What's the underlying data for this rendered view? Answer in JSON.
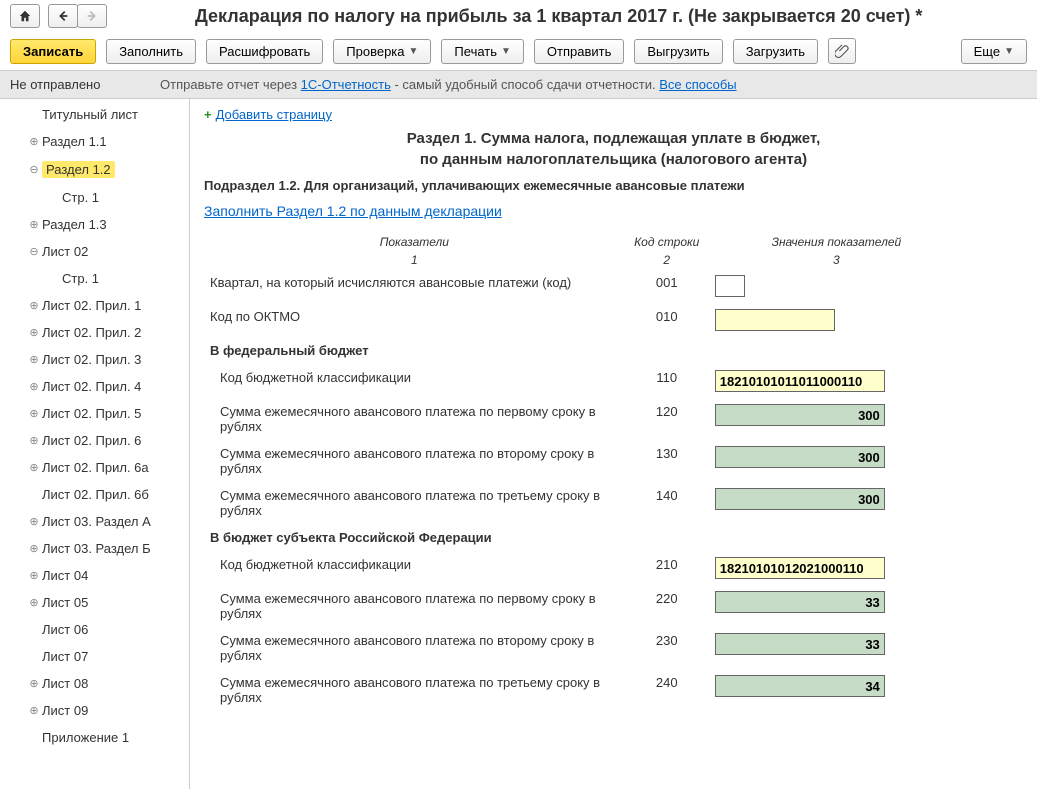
{
  "title": "Декларация по налогу на прибыль за 1 квартал 2017 г. (Не закрывается 20 счет) *",
  "toolbar": {
    "save": "Записать",
    "fill": "Заполнить",
    "decode": "Расшифровать",
    "check": "Проверка",
    "print": "Печать",
    "send": "Отправить",
    "export": "Выгрузить",
    "import": "Загрузить",
    "more": "Еще"
  },
  "status": {
    "label": "Не отправлено",
    "prefix": "Отправьте отчет через ",
    "link1": "1С-Отчетность",
    "middle": " - самый удобный способ сдачи отчетности. ",
    "link2": "Все способы"
  },
  "sidebar": [
    {
      "label": "Титульный лист",
      "indent": 1,
      "exp": ""
    },
    {
      "label": "Раздел 1.1",
      "indent": 1,
      "exp": "+"
    },
    {
      "label": "Раздел 1.2",
      "indent": 1,
      "exp": "-",
      "selected": true
    },
    {
      "label": "Стр. 1",
      "indent": 2,
      "exp": ""
    },
    {
      "label": "Раздел 1.3",
      "indent": 1,
      "exp": "+"
    },
    {
      "label": "Лист 02",
      "indent": 1,
      "exp": "-"
    },
    {
      "label": "Стр. 1",
      "indent": 2,
      "exp": ""
    },
    {
      "label": "Лист 02. Прил. 1",
      "indent": 1,
      "exp": "+"
    },
    {
      "label": "Лист 02. Прил. 2",
      "indent": 1,
      "exp": "+"
    },
    {
      "label": "Лист 02. Прил. 3",
      "indent": 1,
      "exp": "+"
    },
    {
      "label": "Лист 02. Прил. 4",
      "indent": 1,
      "exp": "+"
    },
    {
      "label": "Лист 02. Прил. 5",
      "indent": 1,
      "exp": "+"
    },
    {
      "label": "Лист 02. Прил. 6",
      "indent": 1,
      "exp": "+"
    },
    {
      "label": "Лист 02. Прил. 6а",
      "indent": 1,
      "exp": "+"
    },
    {
      "label": "Лист 02. Прил. 6б",
      "indent": 1,
      "exp": ""
    },
    {
      "label": "Лист 03. Раздел А",
      "indent": 1,
      "exp": "+"
    },
    {
      "label": "Лист 03. Раздел Б",
      "indent": 1,
      "exp": "+"
    },
    {
      "label": "Лист 04",
      "indent": 1,
      "exp": "+"
    },
    {
      "label": "Лист 05",
      "indent": 1,
      "exp": "+"
    },
    {
      "label": "Лист 06",
      "indent": 1,
      "exp": ""
    },
    {
      "label": "Лист 07",
      "indent": 1,
      "exp": ""
    },
    {
      "label": "Лист 08",
      "indent": 1,
      "exp": "+"
    },
    {
      "label": "Лист 09",
      "indent": 1,
      "exp": "+"
    },
    {
      "label": "Приложение 1",
      "indent": 1,
      "exp": ""
    }
  ],
  "content": {
    "add_page": "Добавить страницу",
    "section_title_1": "Раздел 1. Сумма налога, подлежащая уплате в бюджет,",
    "section_title_2": "по данным налогоплательщика (налогового агента)",
    "subsection": "Подраздел 1.2. Для организаций, уплачивающих ежемесячные авансовые платежи",
    "fill_link": "Заполнить Раздел 1.2 по данным декларации",
    "headers": {
      "col1": "Показатели",
      "col1n": "1",
      "col2": "Код строки",
      "col2n": "2",
      "col3": "Значения показателей",
      "col3n": "3"
    },
    "rows": {
      "quarter_label": "Квартал, на который исчисляются авансовые платежи (код)",
      "quarter_code": "001",
      "quarter_value": "",
      "oktmo_label": "Код по ОКТМО",
      "oktmo_code": "010",
      "oktmo_value": "",
      "fed_header": "В федеральный бюджет",
      "kbk_label": "Код бюджетной классификации",
      "kbk_fed_code": "110",
      "kbk_fed_value": "18210101011011000110",
      "pay1_label": "Сумма ежемесячного авансового платежа по первому сроку в рублях",
      "pay1_fed_code": "120",
      "pay1_fed_value": "300",
      "pay2_label": "Сумма ежемесячного авансового платежа по второму сроку в рублях",
      "pay2_fed_code": "130",
      "pay2_fed_value": "300",
      "pay3_label": "Сумма ежемесячного авансового платежа по третьему сроку в рублях",
      "pay3_fed_code": "140",
      "pay3_fed_value": "300",
      "reg_header": "В бюджет субъекта Российской Федерации",
      "kbk_reg_code": "210",
      "kbk_reg_value": "18210101012021000110",
      "pay1_reg_code": "220",
      "pay1_reg_value": "33",
      "pay2_reg_code": "230",
      "pay2_reg_value": "33",
      "pay3_reg_code": "240",
      "pay3_reg_value": "34"
    }
  }
}
